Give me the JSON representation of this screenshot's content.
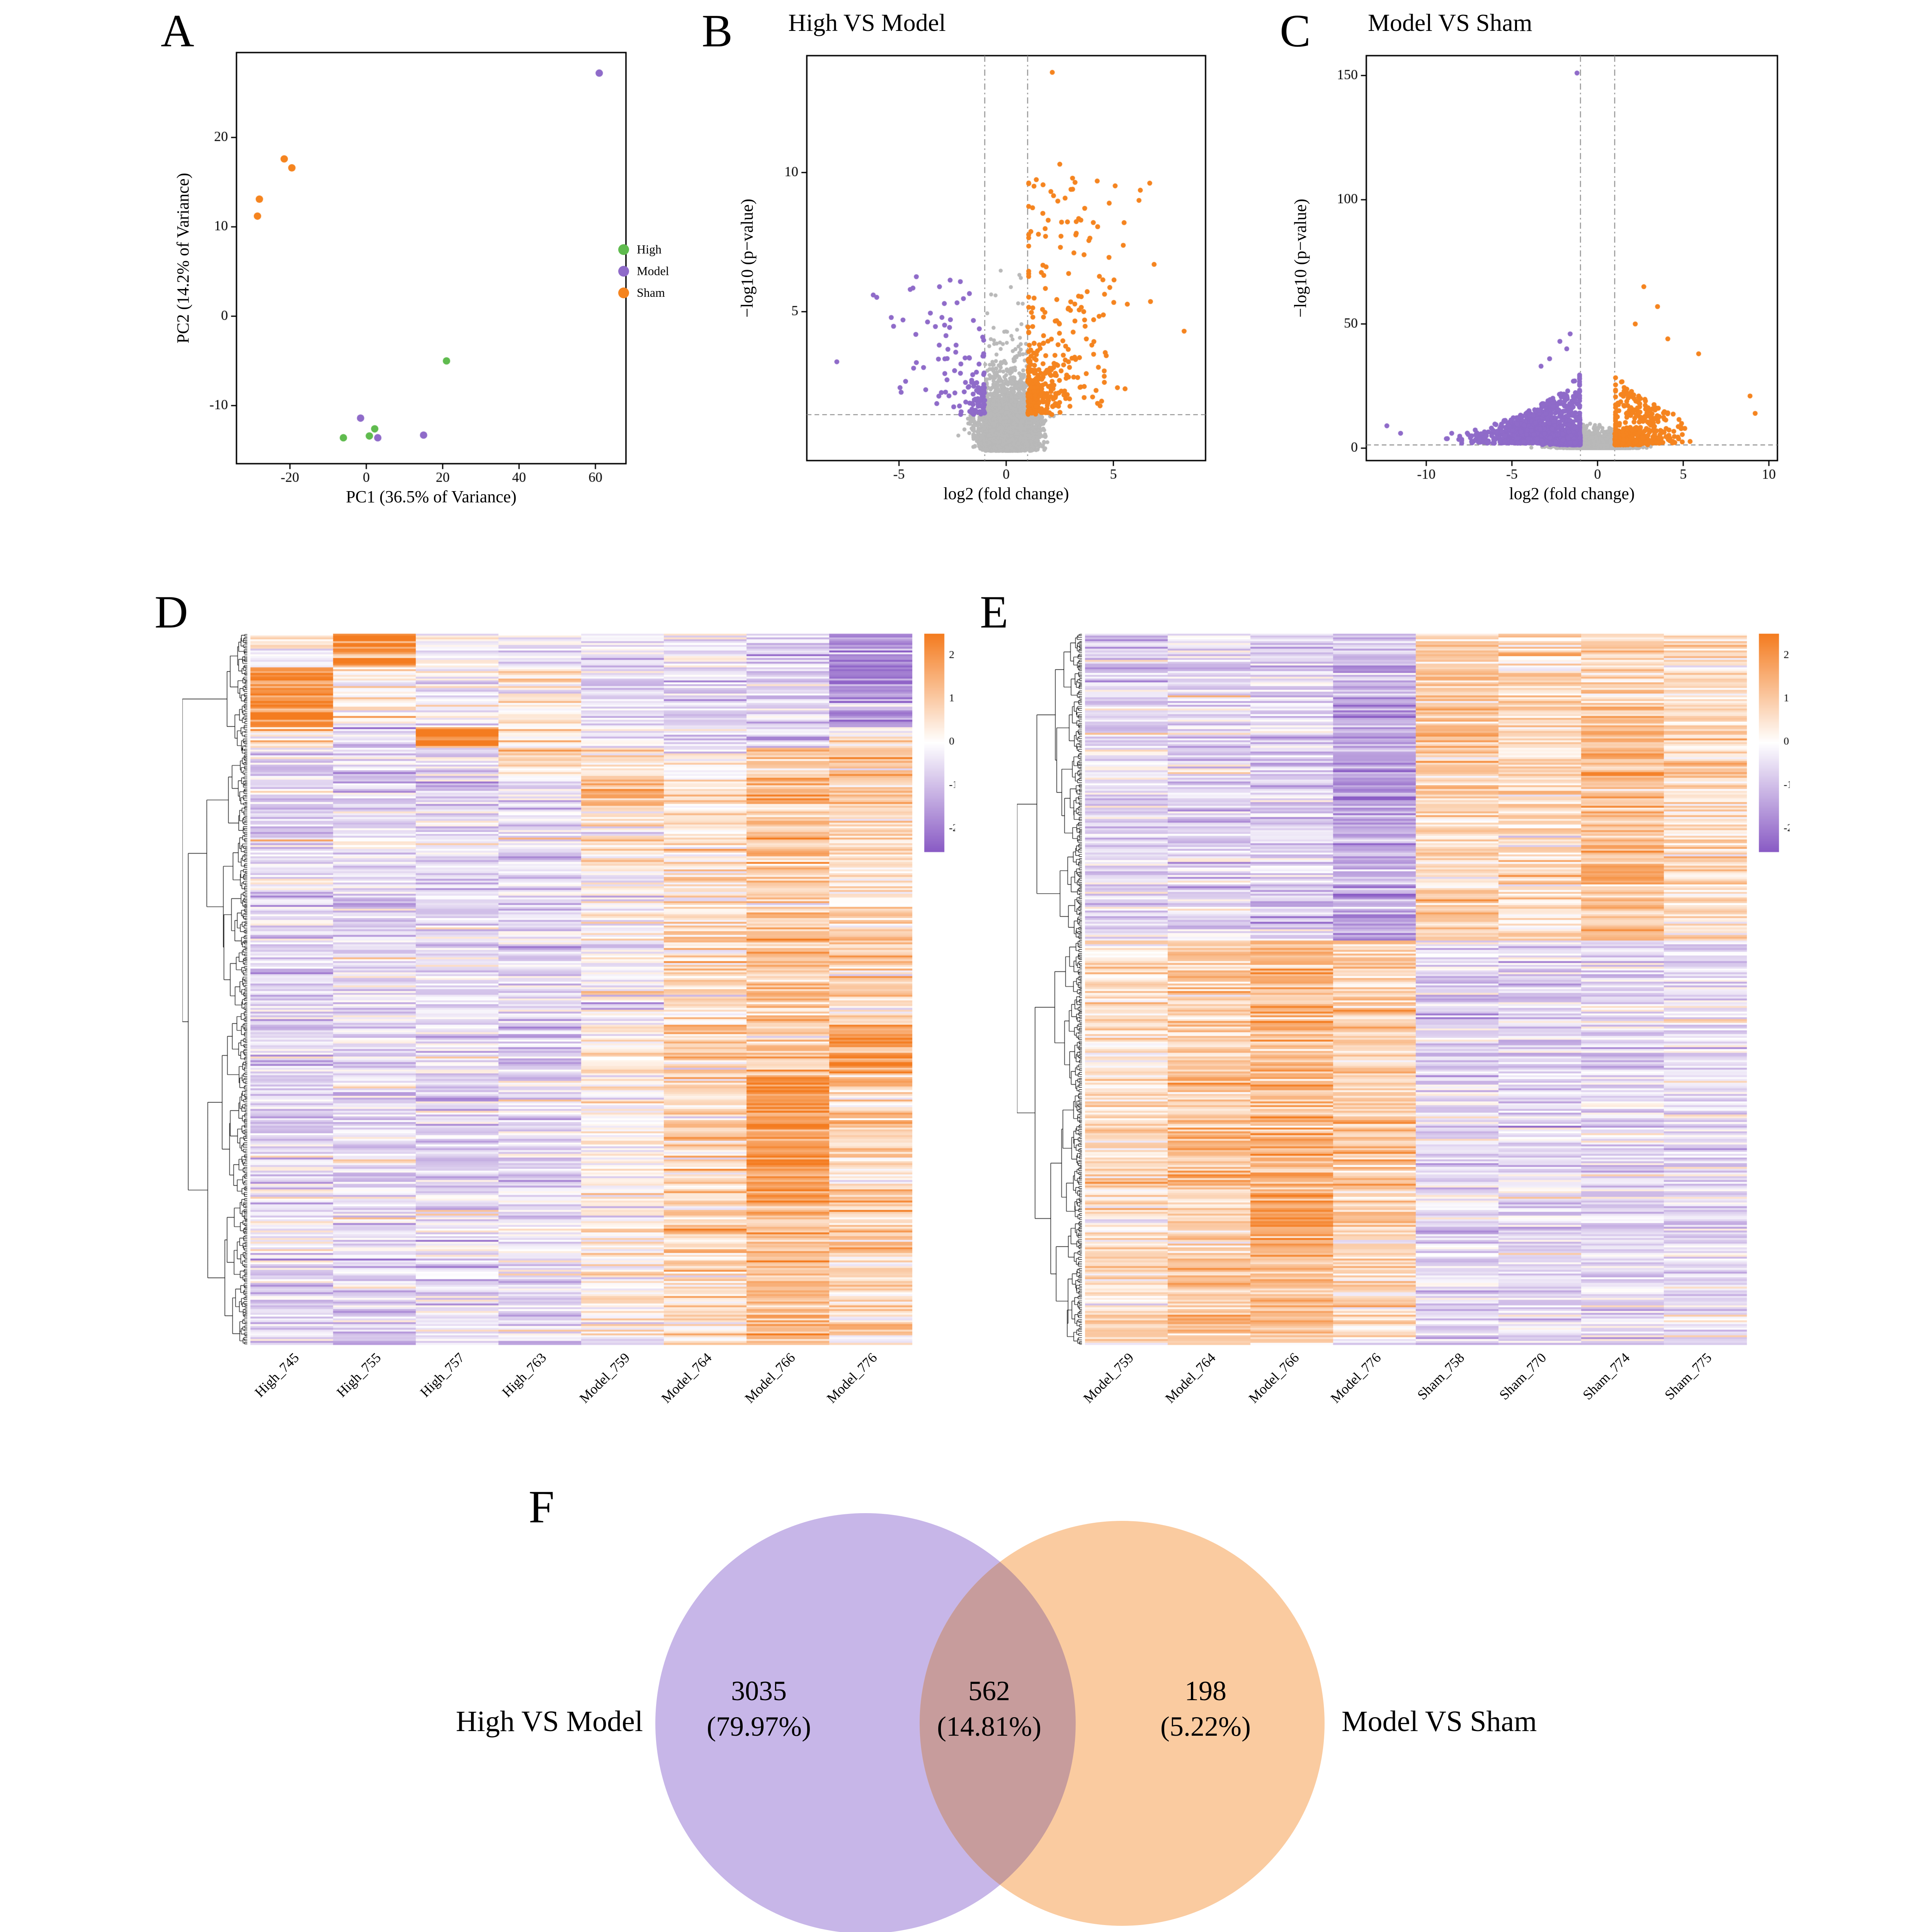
{
  "panel_letters": {
    "a": "A",
    "b": "B",
    "c": "C",
    "d": "D",
    "e": "E",
    "f": "F"
  },
  "chart_data": [
    {
      "id": "pca",
      "type": "scatter",
      "xlabel": "PC1 (36.5% of Variance)",
      "ylabel": "PC2 (14.2% of Variance)",
      "xlim": [
        -34,
        68
      ],
      "ylim": [
        -16.5,
        29.5
      ],
      "xticks": [
        -20,
        0,
        20,
        40,
        60
      ],
      "yticks": [
        -10,
        0,
        10,
        20
      ],
      "legend_position": "right",
      "series": [
        {
          "name": "High",
          "color": "#5FBB4E",
          "points": [
            [
              21,
              -5
            ],
            [
              -6,
              -13.6
            ],
            [
              0.8,
              -13.4
            ],
            [
              2.2,
              -12.6
            ]
          ]
        },
        {
          "name": "Model",
          "color": "#8F6BC9",
          "points": [
            [
              61,
              27.2
            ],
            [
              -1.5,
              -11.4
            ],
            [
              15,
              -13.3
            ],
            [
              3,
              -13.6
            ]
          ]
        },
        {
          "name": "Sham",
          "color": "#F5841F",
          "points": [
            [
              -21.5,
              17.6
            ],
            [
              -19.5,
              16.6
            ],
            [
              -28,
              13.1
            ],
            [
              -28.5,
              11.2
            ]
          ]
        }
      ]
    },
    {
      "id": "volcano_high_vs_model",
      "type": "scatter",
      "title": "High VS Model",
      "xlabel": "log2 (fold change)",
      "ylabel": "−log10 (p−value)",
      "xlim": [
        -9.3,
        9.3
      ],
      "ylim": [
        -0.35,
        14.2
      ],
      "xticks": [
        -5,
        0,
        5
      ],
      "yticks": [
        5,
        10
      ],
      "thresholds": {
        "x": [
          -1,
          1
        ],
        "y": 1.301
      },
      "point_colors": {
        "up": "#F5841F",
        "down": "#8F6BC9",
        "ns": "#B9B9B9"
      },
      "generator": {
        "seed": 11,
        "n": 5200,
        "yMean": 0.8,
        "yCap": 11.5,
        "skew": 0.13,
        "sigma0": 0.5,
        "sigmaSlope": 0.2,
        "xClamp": [
          -8.4,
          8.4
        ],
        "extra": [
          {
            "n": 170,
            "xMean": 2.8,
            "xSd": 1.5,
            "yMin": 1.6,
            "yMax": 9.8,
            "side": 1
          },
          {
            "n": 50,
            "xMean": -3.0,
            "xSd": 1.6,
            "yMin": 1.6,
            "yMax": 6.4,
            "side": -1
          }
        ],
        "outliers": [
          [
            2.15,
            13.6
          ],
          [
            2.5,
            10.3
          ],
          [
            3.1,
            9.4
          ],
          [
            -7.9,
            3.2
          ],
          [
            8.3,
            4.3
          ],
          [
            6.9,
            6.7
          ],
          [
            -6.2,
            5.6
          ],
          [
            5.5,
            8.2
          ]
        ]
      }
    },
    {
      "id": "volcano_model_vs_sham",
      "type": "scatter",
      "title": "Model VS Sham",
      "xlabel": "log2 (fold change)",
      "ylabel": "−log10 (p−value)",
      "xlim": [
        -13.5,
        10.5
      ],
      "ylim": [
        -5,
        158
      ],
      "xticks": [
        -10,
        -5,
        0,
        5,
        10
      ],
      "yticks": [
        0,
        50,
        100,
        150
      ],
      "thresholds": {
        "x": [
          -1,
          1
        ],
        "y": 1.301
      },
      "point_colors": {
        "up": "#F5841F",
        "down": "#8F6BC9",
        "ns": "#B9B9B9"
      },
      "generator": {
        "seed": 23,
        "n": 5500,
        "yMean": 1.6,
        "yCap": 40,
        "skew": -0.12,
        "sigma0": 0.9,
        "sigmaSlope": 0.06,
        "xClamp": [
          -12.6,
          9.6
        ],
        "extra": [
          {
            "n": 900,
            "xMean": -3.4,
            "xSd": 1.6,
            "yMin": 2,
            "yMax": 30,
            "side": -1,
            "taper": true
          },
          {
            "n": 280,
            "xMean": 2.5,
            "xSd": 1.2,
            "yMin": 2,
            "yMax": 30,
            "side": 1,
            "taper": true
          }
        ],
        "outliers": [
          [
            -1.2,
            151
          ],
          [
            2.7,
            65
          ],
          [
            3.5,
            57
          ],
          [
            2.2,
            50
          ],
          [
            4.1,
            44
          ],
          [
            5.9,
            38
          ],
          [
            8.9,
            21
          ],
          [
            9.2,
            14
          ],
          [
            -12.3,
            9
          ],
          [
            -11.5,
            6
          ],
          [
            -1.6,
            46
          ],
          [
            -2.2,
            43
          ],
          [
            -1.8,
            40
          ],
          [
            -2.8,
            36
          ],
          [
            -3.3,
            33
          ]
        ]
      }
    },
    {
      "id": "heatmap_high_model",
      "type": "heatmap",
      "columns": [
        "High_745",
        "High_755",
        "High_757",
        "High_763",
        "Model_759",
        "Model_764",
        "Model_766",
        "Model_776"
      ],
      "rows": 380,
      "seed": 5,
      "noise": 0.55,
      "dendrogram_root_split": 0.17,
      "scale": {
        "min": -2,
        "max": 2,
        "ticks": [
          2,
          1,
          0,
          -1,
          -2
        ]
      },
      "palette": {
        "positive": "#F47C20",
        "mid": "#FFFFFF",
        "negative": "#8A5CC5"
      },
      "blocks": [
        {
          "range": [
            0,
            0.045
          ],
          "means": [
            0.2,
            2.3,
            0.1,
            -0.2,
            -0.4,
            -0.3,
            -0.6,
            -1.6
          ]
        },
        {
          "range": [
            0.045,
            0.13
          ],
          "means": [
            2.1,
            0.3,
            -0.1,
            0.4,
            -0.5,
            -0.6,
            -0.7,
            -1.4
          ]
        },
        {
          "range": [
            0.13,
            0.16
          ],
          "means": [
            0.4,
            -0.4,
            2.4,
            0.5,
            -0.3,
            -0.6,
            -0.9,
            0.3
          ]
        },
        {
          "range": [
            0.16,
            0.2
          ],
          "means": [
            -0.5,
            -0.6,
            -0.4,
            0.9,
            0.6,
            -0.2,
            0.9,
            1.0
          ]
        },
        {
          "range": [
            0.2,
            0.24
          ],
          "means": [
            -0.6,
            -0.5,
            -0.7,
            -0.4,
            1.3,
            0.5,
            1.5,
            0.9
          ]
        },
        {
          "range": [
            0.24,
            0.42
          ],
          "means": [
            -0.55,
            -0.5,
            -0.45,
            -0.5,
            0.15,
            0.5,
            0.9,
            0.55
          ]
        },
        {
          "range": [
            0.42,
            0.55
          ],
          "means": [
            -0.6,
            -0.45,
            -0.5,
            -0.55,
            -0.1,
            0.7,
            1.2,
            0.8
          ]
        },
        {
          "range": [
            0.55,
            0.62
          ],
          "means": [
            -0.5,
            -0.55,
            -0.4,
            -0.6,
            0.3,
            0.8,
            1.0,
            2.0
          ]
        },
        {
          "range": [
            0.62,
            0.8
          ],
          "means": [
            -0.6,
            -0.5,
            -0.55,
            -0.5,
            0.1,
            0.6,
            1.9,
            0.9
          ]
        },
        {
          "range": [
            0.8,
            1.01
          ],
          "means": [
            -0.55,
            -0.5,
            -0.5,
            -0.45,
            0.2,
            0.7,
            1.2,
            0.7
          ]
        }
      ]
    },
    {
      "id": "heatmap_model_sham",
      "type": "heatmap",
      "columns": [
        "Model_759",
        "Model_764",
        "Model_766",
        "Model_776",
        "Sham_758",
        "Sham_770",
        "Sham_774",
        "Sham_775"
      ],
      "rows": 380,
      "seed": 9,
      "noise": 0.5,
      "dendrogram_root_split": 0.43,
      "scale": {
        "min": -2,
        "max": 2,
        "ticks": [
          2,
          1,
          0,
          -1,
          -2
        ]
      },
      "palette": {
        "positive": "#F47C20",
        "mid": "#FFFFFF",
        "negative": "#8A5CC5"
      },
      "blocks": [
        {
          "range": [
            0,
            0.1
          ],
          "means": [
            -0.7,
            -0.5,
            -0.8,
            -1.1,
            0.9,
            0.6,
            0.7,
            0.5
          ]
        },
        {
          "range": [
            0.1,
            0.28
          ],
          "means": [
            -0.5,
            -0.6,
            -0.7,
            -1.5,
            1.0,
            0.7,
            1.1,
            0.6
          ]
        },
        {
          "range": [
            0.28,
            0.43
          ],
          "means": [
            -0.6,
            -0.4,
            -0.6,
            -1.2,
            0.8,
            0.5,
            1.3,
            0.7
          ]
        },
        {
          "range": [
            0.43,
            0.6
          ],
          "means": [
            0.5,
            0.9,
            1.1,
            0.8,
            -0.6,
            -0.5,
            -0.5,
            -0.45
          ]
        },
        {
          "range": [
            0.6,
            0.78
          ],
          "means": [
            0.7,
            1.1,
            1.4,
            1.0,
            -0.55,
            -0.5,
            -0.6,
            -0.5
          ]
        },
        {
          "range": [
            0.78,
            0.86
          ],
          "means": [
            0.3,
            0.8,
            1.8,
            0.9,
            -0.5,
            -0.45,
            -0.55,
            -0.5
          ]
        },
        {
          "range": [
            0.86,
            1.01
          ],
          "means": [
            0.6,
            1.0,
            1.2,
            0.8,
            -0.5,
            -0.5,
            -0.45,
            -0.4
          ]
        }
      ]
    },
    {
      "id": "venn",
      "type": "venn",
      "sets": [
        {
          "label": "High VS Model",
          "count": "3035",
          "percent": "(79.97%)",
          "color": "#C7B6E8"
        },
        {
          "label": "Model VS Sham",
          "count": "198",
          "percent": "(5.22%)",
          "color": "#FACBA0"
        }
      ],
      "overlap": {
        "count": "562",
        "percent": "(14.81%)",
        "color": "#C79C9C"
      }
    }
  ]
}
